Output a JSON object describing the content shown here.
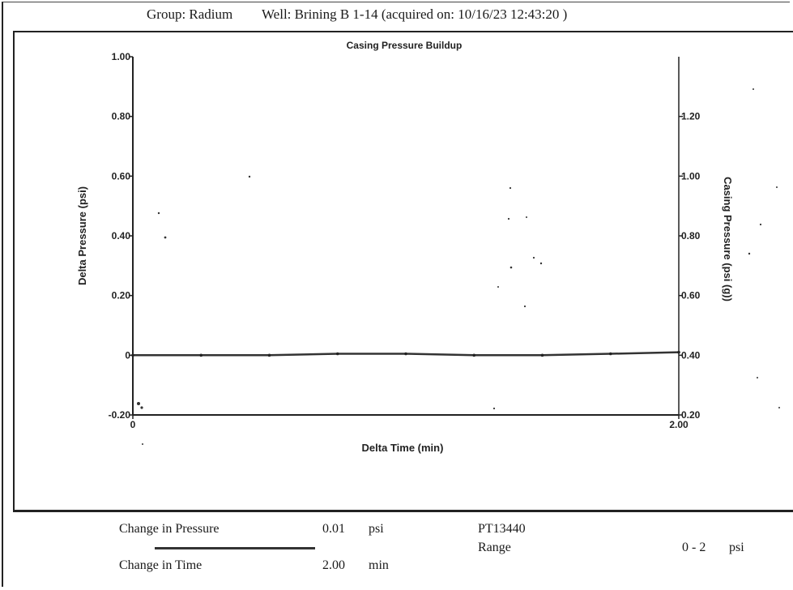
{
  "header": {
    "group": "Group: Radium",
    "well": "Well: Brining B 1-14 (acquired on: 10/16/23 12:43:20 )"
  },
  "chart_data": {
    "type": "line",
    "title": "Casing Pressure Buildup",
    "xlabel": "Delta Time (min)",
    "ylabel": "Delta Pressure (psi)",
    "y2label": "Casing Pressure (psi (g))",
    "xlim": [
      0,
      2.0
    ],
    "ylim": [
      -0.2,
      1.0
    ],
    "y2lim": [
      0.2,
      1.4
    ],
    "x_ticks": [
      "0",
      "2.00"
    ],
    "y_ticks": [
      "1.00",
      "0.80",
      "0.60",
      "0.40",
      "0.20",
      "0",
      "-0.20"
    ],
    "y2_ticks": [
      "1.20",
      "1.00",
      "0.80",
      "0.60",
      "0.40",
      "0.20"
    ],
    "grid": false,
    "series": [
      {
        "x": [
          0,
          0.25,
          0.5,
          0.75,
          1.0,
          1.25,
          1.5,
          1.75,
          2.0
        ],
        "y": [
          0.0,
          0.0,
          0.0,
          0.005,
          0.005,
          0.0,
          0.0,
          0.005,
          0.01
        ]
      }
    ]
  },
  "footer": {
    "change_pressure_label": "Change in Pressure",
    "change_pressure_value": "0.01",
    "change_pressure_unit": "psi",
    "change_time_label": "Change in Time",
    "change_time_value": "2.00",
    "change_time_unit": "min",
    "sensor_id": "PT13440",
    "range_label": "Range",
    "range_value": "0 - 2",
    "range_unit": "psi"
  }
}
